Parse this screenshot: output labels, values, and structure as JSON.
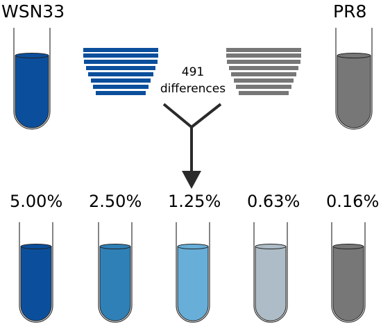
{
  "strains": {
    "left": {
      "name": "WSN33",
      "color": "#0b4f9c"
    },
    "right": {
      "name": "PR8",
      "color": "#777777"
    }
  },
  "differences": {
    "count": "491",
    "label": "differences"
  },
  "mixtures": [
    {
      "percent": "5.00%",
      "color": "#0b4f9c"
    },
    {
      "percent": "2.50%",
      "color": "#2f80b7"
    },
    {
      "percent": "1.25%",
      "color": "#67aed8"
    },
    {
      "percent": "0.63%",
      "color": "#adbcc6"
    },
    {
      "percent": "0.16%",
      "color": "#777777"
    }
  ]
}
